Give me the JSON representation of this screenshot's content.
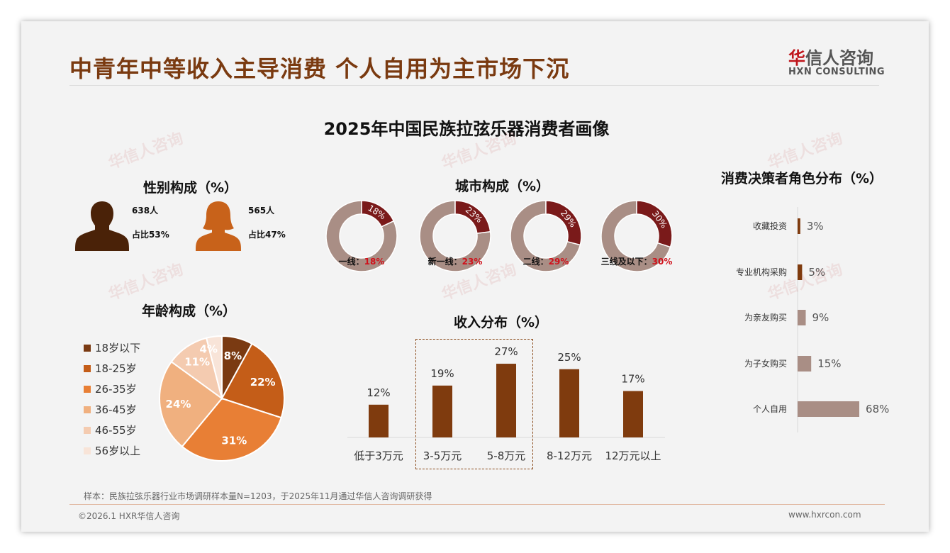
{
  "header": {
    "title": "中青年中等收入主导消费 个人自用为主市场下沉",
    "logo_cn_mark": "华",
    "logo_cn_rest": "信人咨询",
    "logo_en": "HXN CONSULTING"
  },
  "main_title": "2025年中国民族拉弦乐器消费者画像",
  "gender": {
    "title": "性别构成（%）",
    "male": {
      "count": "638人",
      "share": "占比53%",
      "color": "#4a2208"
    },
    "female": {
      "count": "565人",
      "share": "占比47%",
      "color": "#c8621a"
    }
  },
  "chart_data": [
    {
      "type": "pie",
      "title": "城市构成（%）",
      "variant": "donut-set",
      "categories": [
        "一线：",
        "新一线：",
        "二线：",
        "三线及以下："
      ],
      "values": [
        18,
        23,
        29,
        30
      ],
      "value_labels": [
        "18%",
        "23%",
        "29%",
        "30%"
      ],
      "colors": {
        "value": "#7a1a1a",
        "rest": "#a98e85",
        "label": "#d0101a"
      }
    },
    {
      "type": "pie",
      "title": "年龄构成（%）",
      "categories": [
        "18岁以下",
        "18-25岁",
        "26-35岁",
        "36-45岁",
        "46-55岁",
        "56岁以上"
      ],
      "values": [
        8,
        22,
        31,
        24,
        11,
        4
      ],
      "value_labels": [
        "8%",
        "22%",
        "31%",
        "24%",
        "11%",
        "4%"
      ],
      "colors": [
        "#7a3a12",
        "#c45d18",
        "#e87f35",
        "#f0b07f",
        "#f4cbb0",
        "#f8e4d8"
      ],
      "legend": "left"
    },
    {
      "type": "bar",
      "title": "收入分布（%）",
      "categories": [
        "低于3万元",
        "3-5万元",
        "5-8万元",
        "8-12万元",
        "12万元以上"
      ],
      "values": [
        12,
        19,
        27,
        25,
        17
      ],
      "value_labels": [
        "12%",
        "19%",
        "27%",
        "25%",
        "17%"
      ],
      "color": "#7f3b0e",
      "highlight": [
        "3-5万元",
        "5-8万元"
      ]
    },
    {
      "type": "bar",
      "orientation": "horizontal",
      "title": "消费决策者角色分布（%）",
      "categories": [
        "收藏投资",
        "专业机构采购",
        "为亲友购买",
        "为子女购买",
        "个人自用"
      ],
      "values": [
        3,
        5,
        9,
        15,
        68
      ],
      "value_labels": [
        "3%",
        "5%",
        "9%",
        "15%",
        "68%"
      ],
      "colors": [
        "#7f3b0e",
        "#7f3b0e",
        "#a98e85",
        "#a98e85",
        "#a98e85"
      ]
    }
  ],
  "footer": {
    "note": "样本：民族拉弦乐器行业市场调研样本量N=1203，于2025年11月通过华信人咨询调研获得",
    "copyright": "©2026.1 HXR华信人咨询",
    "url": "www.hxrcon.com"
  }
}
